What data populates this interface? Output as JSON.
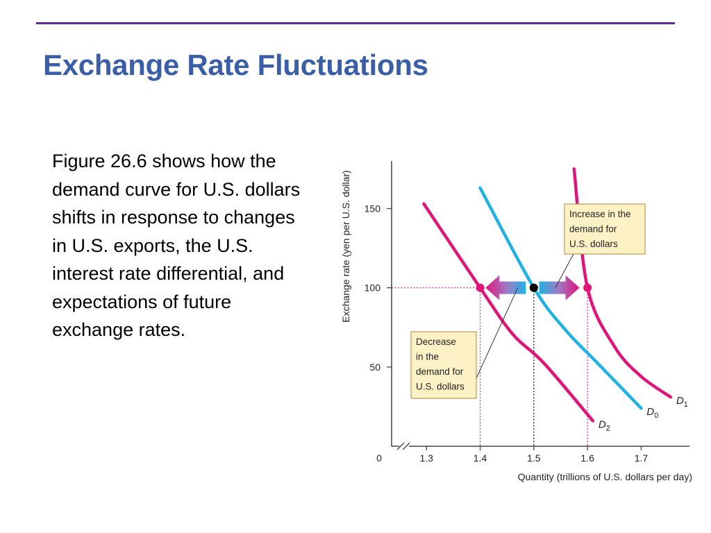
{
  "slide": {
    "title": "Exchange Rate Fluctuations",
    "body": "Figure 26.6 shows how the demand curve for U.S. dollars shifts in response to changes in U.S. exports, the U.S. interest rate differential, and expectations of future exchange rates."
  },
  "colors": {
    "title": "#3a5ea8",
    "rule": "#5b2c8f",
    "magenta": "#e0157a",
    "cyan": "#1fb2e2",
    "callout_fill": "#fdf1c6",
    "callout_border": "#b89a52"
  },
  "chart_data": {
    "type": "line",
    "xlabel": "Quantity (trillions of U.S. dollars per day)",
    "ylabel": "Exchange rate (yen per U.S. dollar)",
    "origin_label": "0",
    "x_ticks": [
      "1.3",
      "1.4",
      "1.5",
      "1.6",
      "1.7"
    ],
    "x_tick_values": [
      1.3,
      1.4,
      1.5,
      1.6,
      1.7
    ],
    "highlight_x_ticks": [
      "1.4",
      "1.6"
    ],
    "y_ticks": [
      "50",
      "100",
      "150"
    ],
    "y_tick_values": [
      50,
      100,
      150
    ],
    "highlight_y_ticks": [
      "100"
    ],
    "xlim": [
      1.235,
      1.79
    ],
    "ylim": [
      0,
      180
    ],
    "axis_break": true,
    "series": [
      {
        "name": "D",
        "sub": "1",
        "color": "magenta",
        "points": [
          [
            1.575,
            175
          ],
          [
            1.6,
            100
          ],
          [
            1.65,
            63
          ],
          [
            1.7,
            44
          ],
          [
            1.755,
            31
          ]
        ]
      },
      {
        "name": "D",
        "sub": "0",
        "color": "cyan",
        "points": [
          [
            1.4,
            163
          ],
          [
            1.5,
            100
          ],
          [
            1.56,
            73
          ],
          [
            1.62,
            52
          ],
          [
            1.7,
            24
          ]
        ]
      },
      {
        "name": "D",
        "sub": "2",
        "color": "magenta",
        "points": [
          [
            1.295,
            153
          ],
          [
            1.4,
            100
          ],
          [
            1.46,
            71
          ],
          [
            1.52,
            52
          ],
          [
            1.61,
            16
          ]
        ]
      }
    ],
    "points": [
      {
        "x": 1.4,
        "y": 100,
        "color": "magenta"
      },
      {
        "x": 1.5,
        "y": 100,
        "color": "black"
      },
      {
        "x": 1.6,
        "y": 100,
        "color": "magenta"
      }
    ],
    "annotations": [
      {
        "id": "increase",
        "lines": [
          "Increase in the",
          "demand for",
          "U.S. dollars"
        ],
        "target": [
          1.54,
          100
        ]
      },
      {
        "id": "decrease",
        "lines": [
          "Decrease",
          "in the",
          "demand for",
          "U.S. dollars"
        ],
        "target": [
          1.47,
          100
        ]
      }
    ],
    "shift_arrows": [
      {
        "from": 1.485,
        "to": 1.41,
        "y": 100,
        "direction": "left"
      },
      {
        "from": 1.51,
        "to": 1.585,
        "y": 100,
        "direction": "right"
      }
    ],
    "grid": false
  }
}
